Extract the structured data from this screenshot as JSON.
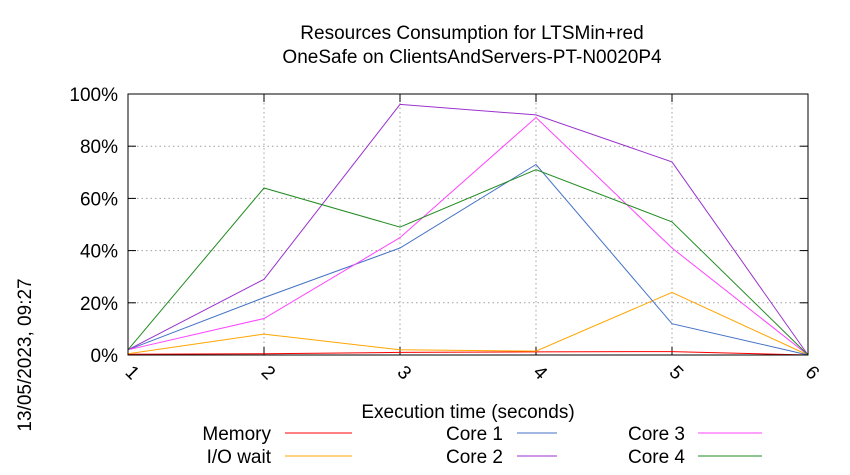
{
  "chart_data": {
    "type": "line",
    "title": "Resources Consumption for LTSMin+red",
    "subtitle": "OneSafe on ClientsAndServers-PT-N0020P4",
    "xlabel": "Execution time (seconds)",
    "ylabel": "",
    "timestamp": "13/05/2023, 09:27",
    "x": [
      1,
      2,
      3,
      4,
      5,
      6
    ],
    "xlim": [
      1,
      6
    ],
    "ylim": [
      0,
      100
    ],
    "y_ticks": [
      "0%",
      "20%",
      "40%",
      "60%",
      "80%",
      "100%"
    ],
    "x_ticks": [
      "1",
      "2",
      "3",
      "4",
      "5",
      "6"
    ],
    "grid": true,
    "legend_position": "bottom",
    "series": [
      {
        "name": "Memory",
        "color": "#ff0000",
        "values": [
          0.3,
          0.5,
          1.0,
          1.2,
          1.3,
          0
        ]
      },
      {
        "name": "I/O wait",
        "color": "#ffa500",
        "values": [
          0.5,
          8,
          2,
          1.5,
          24,
          0
        ]
      },
      {
        "name": "Core 1",
        "color": "#4472c4",
        "values": [
          2,
          22,
          41,
          73,
          12,
          0
        ]
      },
      {
        "name": "Core 2",
        "color": "#9932cc",
        "values": [
          2,
          29,
          96,
          92,
          74,
          0
        ]
      },
      {
        "name": "Core 3",
        "color": "#ff44ff",
        "values": [
          2,
          14,
          45,
          91,
          41,
          0
        ]
      },
      {
        "name": "Core 4",
        "color": "#228b22",
        "values": [
          2,
          64,
          49,
          71,
          51,
          0
        ]
      }
    ]
  }
}
